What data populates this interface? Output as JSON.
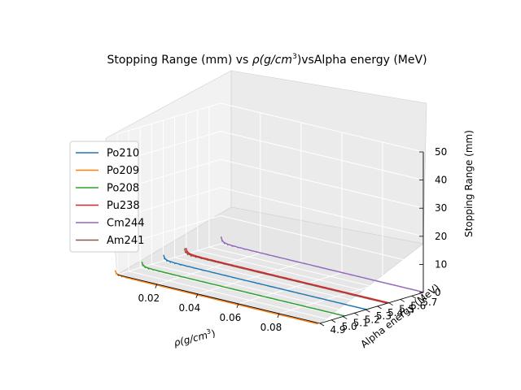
{
  "chart_data": {
    "type": "line",
    "projection": "3d",
    "title_main": "Stopping Range (mm) vs ",
    "title_rho": "ρ(g/cm",
    "title_sup": "3",
    "title_tail": ")vsAlpha energy (MeV)",
    "xlabel_main": "ρ(g/cm",
    "xlabel_sup": "3",
    "xlabel_tail": ")",
    "ylabel": "Alpha energy (MeV)",
    "zlabel": "Stopping Range (mm)",
    "xlim": [
      0.0005,
      0.1
    ],
    "ylim": [
      4.9,
      5.8
    ],
    "zlim": [
      0,
      50
    ],
    "x_ticks": [
      "0.02",
      "0.04",
      "0.06",
      "0.08"
    ],
    "x_tick_values": [
      0.02,
      0.04,
      0.06,
      0.08
    ],
    "y_ticks": [
      "4.9",
      "5.0",
      "5.1",
      "5.2",
      "5.3",
      "5.4",
      "5.5",
      "5.6",
      "5.7"
    ],
    "y_tick_values": [
      4.9,
      5.0,
      5.1,
      5.2,
      5.3,
      5.4,
      5.5,
      5.6,
      5.7
    ],
    "z_ticks": [
      "0",
      "10",
      "20",
      "30",
      "40",
      "50"
    ],
    "z_tick_values": [
      0,
      10,
      20,
      30,
      40,
      50
    ],
    "grid": true,
    "legend_position": "left",
    "series": [
      {
        "name": "Po210",
        "energy": 5.304,
        "color": "#1f77b4"
      },
      {
        "name": "Po209",
        "energy": 4.883,
        "color": "#ff7f0e"
      },
      {
        "name": "Po208",
        "energy": 5.115,
        "color": "#2ca02c"
      },
      {
        "name": "Pu238",
        "energy": 5.499,
        "color": "#d62728"
      },
      {
        "name": "Cm244",
        "energy": 5.805,
        "color": "#9467bd"
      },
      {
        "name": "Am241",
        "energy": 5.486,
        "color": "#8c564b"
      }
    ]
  }
}
